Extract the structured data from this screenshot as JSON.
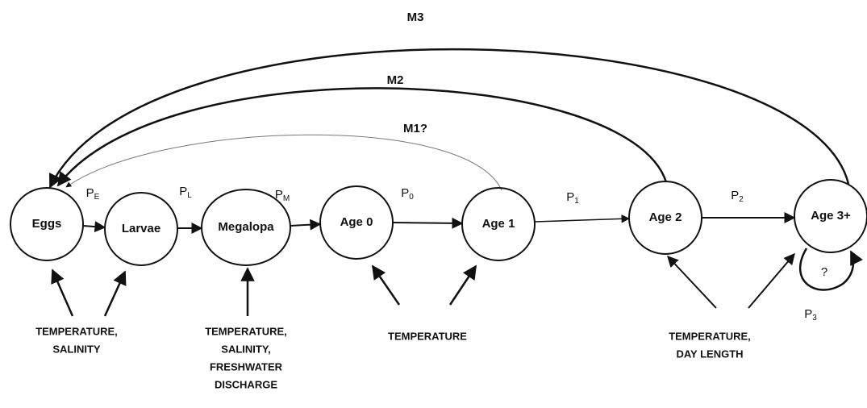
{
  "nodes": [
    {
      "label": "Eggs"
    },
    {
      "label": "Larvae"
    },
    {
      "label": "Megalopa"
    },
    {
      "label": "Age 0"
    },
    {
      "label": "Age 1"
    },
    {
      "label": "Age 2"
    },
    {
      "label": "Age 3+"
    }
  ],
  "transitions": [
    {
      "label": "P",
      "sub": "E"
    },
    {
      "label": "P",
      "sub": "L"
    },
    {
      "label": "P",
      "sub": "M"
    },
    {
      "label": "P",
      "sub": "0"
    },
    {
      "label": "P",
      "sub": "1"
    },
    {
      "label": "P",
      "sub": "2"
    },
    {
      "label": "P",
      "sub": "3"
    }
  ],
  "loop_label": "?",
  "returns": [
    {
      "label": "M1?"
    },
    {
      "label": "M2"
    },
    {
      "label": "M3"
    }
  ],
  "factors": [
    {
      "lines": [
        "TEMPERATURE,",
        "SALINITY"
      ]
    },
    {
      "lines": [
        "TEMPERATURE,",
        "SALINITY,",
        "FRESHWATER",
        "DISCHARGE"
      ]
    },
    {
      "lines": [
        "TEMPERATURE"
      ]
    },
    {
      "lines": [
        "TEMPERATURE,",
        "DAY LENGTH"
      ]
    }
  ]
}
